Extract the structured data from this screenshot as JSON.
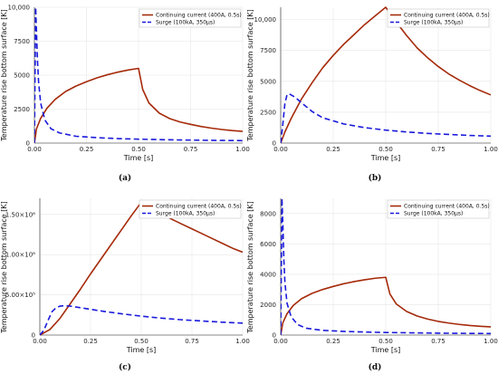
{
  "chart_data": [
    {
      "type": "line",
      "panel_label": "(a)",
      "xlabel": "Time [s]",
      "ylabel": "Temperature rise bottom surface [K]",
      "xlim": [
        0,
        1.0
      ],
      "ylim": [
        0,
        10000
      ],
      "x_ticks": [
        0,
        0.25,
        0.5,
        0.75,
        1.0
      ],
      "x_tick_labels": [
        "0.00",
        "0.25",
        "0.50",
        "0.75",
        "1.00"
      ],
      "y_ticks": [
        0,
        2500,
        5000,
        7500,
        10000
      ],
      "y_tick_labels": [
        "0",
        "2500",
        "5000",
        "7500",
        "10,000"
      ],
      "legend_position": "top-right",
      "series": [
        {
          "name": "Continuing current (400A, 0.5s)",
          "color": "#a52a0a",
          "style": "solid",
          "x": [
            0,
            0.01,
            0.03,
            0.06,
            0.1,
            0.15,
            0.2,
            0.25,
            0.3,
            0.35,
            0.4,
            0.45,
            0.5,
            0.52,
            0.55,
            0.6,
            0.65,
            0.7,
            0.75,
            0.8,
            0.85,
            0.9,
            0.95,
            1.0
          ],
          "y": [
            0,
            1050,
            1820,
            2560,
            3220,
            3800,
            4200,
            4520,
            4800,
            5030,
            5220,
            5380,
            5500,
            3950,
            2950,
            2200,
            1800,
            1550,
            1380,
            1220,
            1100,
            1000,
            920,
            860
          ]
        },
        {
          "name": "Surge (100kA, 350µs)",
          "color": "#1a1adb",
          "style": "dashed",
          "x": [
            0,
            0.003,
            0.006,
            0.01,
            0.015,
            0.02,
            0.03,
            0.05,
            0.08,
            0.12,
            0.2,
            0.3,
            0.4,
            0.5,
            0.6,
            0.7,
            0.8,
            0.9,
            1.0
          ],
          "y": [
            0,
            5000,
            10000,
            8200,
            6000,
            4500,
            2950,
            1700,
            1050,
            750,
            500,
            400,
            330,
            290,
            255,
            230,
            210,
            195,
            180
          ]
        }
      ]
    },
    {
      "type": "line",
      "panel_label": "(b)",
      "xlabel": "Time [s]",
      "ylabel": "Temperature rise bottom surface [K]",
      "xlim": [
        0,
        1.0
      ],
      "ylim": [
        0,
        11000
      ],
      "x_ticks": [
        0,
        0.25,
        0.5,
        0.75,
        1.0
      ],
      "x_tick_labels": [
        "0.00",
        "0.25",
        "0.50",
        "0.75",
        "1.00"
      ],
      "y_ticks": [
        0,
        2500,
        5000,
        7500,
        10000
      ],
      "y_tick_labels": [
        "0",
        "2500",
        "5000",
        "7500",
        "10,000"
      ],
      "legend_position": "top-right",
      "series": [
        {
          "name": "Continuing current (400A, 0.5s)",
          "color": "#a52a0a",
          "style": "solid",
          "x": [
            0,
            0.02,
            0.05,
            0.1,
            0.15,
            0.2,
            0.25,
            0.3,
            0.35,
            0.4,
            0.45,
            0.5,
            0.55,
            0.6,
            0.65,
            0.7,
            0.75,
            0.8,
            0.85,
            0.9,
            0.95,
            1.0
          ],
          "y": [
            0,
            900,
            2000,
            3600,
            4900,
            6100,
            7100,
            8000,
            8800,
            9600,
            10300,
            11000,
            9800,
            8700,
            7700,
            6900,
            6200,
            5600,
            5100,
            4650,
            4250,
            3900
          ]
        },
        {
          "name": "Surge (100kA, 350µs)",
          "color": "#1a1adb",
          "style": "dashed",
          "x": [
            0,
            0.01,
            0.02,
            0.03,
            0.04,
            0.06,
            0.08,
            0.1,
            0.15,
            0.2,
            0.3,
            0.4,
            0.5,
            0.6,
            0.7,
            0.8,
            0.9,
            1.0
          ],
          "y": [
            0,
            1500,
            3200,
            3900,
            4000,
            3800,
            3550,
            3250,
            2550,
            2050,
            1550,
            1250,
            1050,
            900,
            780,
            700,
            620,
            560
          ]
        }
      ]
    },
    {
      "type": "line",
      "panel_label": "(c)",
      "xlabel": "Time [s]",
      "ylabel": "Temperature rise bottom surface [K]",
      "xlim": [
        0,
        1.0
      ],
      "ylim": [
        0,
        1700000
      ],
      "x_ticks": [
        0,
        0.25,
        0.5,
        0.75,
        1.0
      ],
      "x_tick_labels": [
        "0.00",
        "0.25",
        "0.50",
        "0.75",
        "1.00"
      ],
      "y_ticks": [
        0,
        500000,
        1000000,
        1500000
      ],
      "y_tick_labels": [
        "0",
        "5.00×10⁵",
        "1.00×10⁶",
        "1.50×10⁶"
      ],
      "legend_position": "top-right",
      "series": [
        {
          "name": "Continuing current (400A, 0.5s)",
          "color": "#a52a0a",
          "style": "solid",
          "x": [
            0,
            0.05,
            0.1,
            0.15,
            0.2,
            0.25,
            0.3,
            0.35,
            0.4,
            0.45,
            0.5,
            0.55,
            0.6,
            0.65,
            0.7,
            0.75,
            0.8,
            0.85,
            0.9,
            0.95,
            1.0
          ],
          "y": [
            0,
            70000,
            210000,
            390000,
            570000,
            760000,
            940000,
            1120000,
            1300000,
            1480000,
            1650000,
            1580000,
            1510000,
            1440000,
            1380000,
            1320000,
            1260000,
            1200000,
            1140000,
            1080000,
            1030000
          ]
        },
        {
          "name": "Surge (100kA, 350µs)",
          "color": "#1a1adb",
          "style": "dashed",
          "x": [
            0,
            0.02,
            0.04,
            0.06,
            0.08,
            0.1,
            0.12,
            0.15,
            0.2,
            0.3,
            0.4,
            0.5,
            0.6,
            0.7,
            0.8,
            0.9,
            1.0
          ],
          "y": [
            0,
            60000,
            180000,
            290000,
            340000,
            360000,
            365000,
            360000,
            340000,
            300000,
            265000,
            235000,
            210000,
            190000,
            175000,
            160000,
            148000
          ]
        }
      ]
    },
    {
      "type": "line",
      "panel_label": "(d)",
      "xlabel": "Time [s]",
      "ylabel": "Temperature rise bottom surface [K]",
      "xlim": [
        0,
        1.0
      ],
      "ylim": [
        0,
        9000
      ],
      "x_ticks": [
        0,
        0.25,
        0.5,
        0.75,
        1.0
      ],
      "x_tick_labels": [
        "0.00",
        "0.25",
        "0.50",
        "0.75",
        "1.00"
      ],
      "y_ticks": [
        0,
        2000,
        4000,
        6000,
        8000
      ],
      "y_tick_labels": [
        "0",
        "2000",
        "4000",
        "6000",
        "8000"
      ],
      "legend_position": "top-right",
      "series": [
        {
          "name": "Continuing current (400A, 0.5s)",
          "color": "#a52a0a",
          "style": "solid",
          "x": [
            0,
            0.01,
            0.03,
            0.06,
            0.1,
            0.15,
            0.2,
            0.25,
            0.3,
            0.35,
            0.4,
            0.45,
            0.5,
            0.52,
            0.55,
            0.6,
            0.65,
            0.7,
            0.75,
            0.8,
            0.85,
            0.9,
            0.95,
            1.0
          ],
          "y": [
            0,
            800,
            1400,
            1950,
            2400,
            2750,
            3000,
            3200,
            3380,
            3520,
            3640,
            3740,
            3800,
            2700,
            2050,
            1550,
            1250,
            1050,
            900,
            790,
            700,
            630,
            580,
            540
          ]
        },
        {
          "name": "Surge (100kA, 350µs)",
          "color": "#1a1adb",
          "style": "dashed",
          "x": [
            0,
            0.003,
            0.006,
            0.01,
            0.015,
            0.02,
            0.03,
            0.05,
            0.08,
            0.12,
            0.2,
            0.3,
            0.4,
            0.5,
            0.6,
            0.7,
            0.8,
            0.9,
            1.0
          ],
          "y": [
            0,
            4500,
            9000,
            7400,
            5000,
            3500,
            2100,
            1200,
            700,
            450,
            310,
            240,
            200,
            170,
            150,
            135,
            120,
            110,
            100
          ]
        }
      ]
    }
  ]
}
